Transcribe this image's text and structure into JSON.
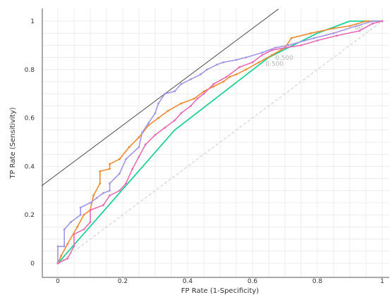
{
  "chart_data": {
    "type": "line",
    "title": "",
    "xlabel": "FP Rate (1-Specificity)",
    "ylabel": "TP Rate (Sensitivity)",
    "xlim": [
      0,
      1
    ],
    "ylim": [
      0,
      1
    ],
    "x_ticks": [
      "0",
      "0.2",
      "0.4",
      "0.6",
      "0.8",
      "1"
    ],
    "y_ticks": [
      "0",
      "0.2",
      "0.4",
      "0.6",
      "0.8",
      "1"
    ],
    "grid": true,
    "legend": "none",
    "diagonal_color": "#cccccc",
    "iso_line": {
      "color": "#4d4d4d",
      "points": [
        [
          -0.05,
          0.32
        ],
        [
          0.68,
          1.05
        ]
      ]
    },
    "threshold_labels": [
      {
        "text": "0.500",
        "x": 0.67,
        "y": 0.84
      },
      {
        "text": "0.500",
        "x": 0.64,
        "y": 0.815
      },
      {
        "text": "00",
        "x": 0.915,
        "y": 0.965
      }
    ],
    "series": [
      {
        "color": "#1fd196",
        "points": [
          [
            0,
            0
          ],
          [
            0.36,
            0.55
          ],
          [
            0.65,
            0.85
          ],
          [
            0.8,
            0.95
          ],
          [
            0.9,
            1.0
          ],
          [
            1.0,
            1.0
          ]
        ]
      },
      {
        "color": "#f08a30",
        "points": [
          [
            0,
            0
          ],
          [
            0.01,
            0.03
          ],
          [
            0.03,
            0.08
          ],
          [
            0.06,
            0.15
          ],
          [
            0.08,
            0.2
          ],
          [
            0.1,
            0.22
          ],
          [
            0.11,
            0.28
          ],
          [
            0.13,
            0.33
          ],
          [
            0.13,
            0.38
          ],
          [
            0.16,
            0.39
          ],
          [
            0.16,
            0.41
          ],
          [
            0.19,
            0.43
          ],
          [
            0.22,
            0.48
          ],
          [
            0.25,
            0.52
          ],
          [
            0.28,
            0.57
          ],
          [
            0.31,
            0.6
          ],
          [
            0.34,
            0.63
          ],
          [
            0.38,
            0.66
          ],
          [
            0.42,
            0.68
          ],
          [
            0.45,
            0.71
          ],
          [
            0.48,
            0.73
          ],
          [
            0.51,
            0.75
          ],
          [
            0.53,
            0.77
          ],
          [
            0.55,
            0.78
          ],
          [
            0.58,
            0.8
          ],
          [
            0.62,
            0.83
          ],
          [
            0.66,
            0.86
          ],
          [
            0.7,
            0.89
          ],
          [
            0.72,
            0.93
          ],
          [
            0.78,
            0.95
          ],
          [
            0.85,
            0.97
          ],
          [
            0.9,
            0.98
          ],
          [
            0.95,
            1.0
          ],
          [
            1.0,
            1.0
          ]
        ]
      },
      {
        "color": "#a394e6",
        "points": [
          [
            0,
            0
          ],
          [
            0,
            0.07
          ],
          [
            0.02,
            0.07
          ],
          [
            0.02,
            0.14
          ],
          [
            0.04,
            0.17
          ],
          [
            0.07,
            0.2
          ],
          [
            0.07,
            0.23
          ],
          [
            0.1,
            0.25
          ],
          [
            0.12,
            0.27
          ],
          [
            0.14,
            0.29
          ],
          [
            0.16,
            0.3
          ],
          [
            0.16,
            0.33
          ],
          [
            0.19,
            0.37
          ],
          [
            0.21,
            0.43
          ],
          [
            0.25,
            0.48
          ],
          [
            0.26,
            0.54
          ],
          [
            0.28,
            0.58
          ],
          [
            0.3,
            0.62
          ],
          [
            0.31,
            0.66
          ],
          [
            0.33,
            0.7
          ],
          [
            0.36,
            0.71
          ],
          [
            0.38,
            0.74
          ],
          [
            0.41,
            0.76
          ],
          [
            0.44,
            0.78
          ],
          [
            0.46,
            0.8
          ],
          [
            0.49,
            0.82
          ],
          [
            0.51,
            0.83
          ],
          [
            0.55,
            0.84
          ],
          [
            0.58,
            0.85
          ],
          [
            0.63,
            0.87
          ],
          [
            0.67,
            0.89
          ],
          [
            0.71,
            0.9
          ],
          [
            0.79,
            0.93
          ],
          [
            0.85,
            0.95
          ],
          [
            0.92,
            0.98
          ],
          [
            0.97,
            1.0
          ],
          [
            1.0,
            1.0
          ]
        ]
      },
      {
        "color": "#e86ab5",
        "points": [
          [
            0,
            0
          ],
          [
            0.03,
            0.02
          ],
          [
            0.05,
            0.07
          ],
          [
            0.05,
            0.12
          ],
          [
            0.08,
            0.14
          ],
          [
            0.1,
            0.17
          ],
          [
            0.1,
            0.22
          ],
          [
            0.14,
            0.24
          ],
          [
            0.16,
            0.28
          ],
          [
            0.19,
            0.3
          ],
          [
            0.21,
            0.33
          ],
          [
            0.23,
            0.39
          ],
          [
            0.25,
            0.44
          ],
          [
            0.27,
            0.49
          ],
          [
            0.3,
            0.53
          ],
          [
            0.33,
            0.56
          ],
          [
            0.36,
            0.59
          ],
          [
            0.38,
            0.62
          ],
          [
            0.41,
            0.65
          ],
          [
            0.43,
            0.68
          ],
          [
            0.45,
            0.7
          ],
          [
            0.48,
            0.74
          ],
          [
            0.52,
            0.77
          ],
          [
            0.56,
            0.81
          ],
          [
            0.6,
            0.83
          ],
          [
            0.63,
            0.86
          ],
          [
            0.66,
            0.88
          ],
          [
            0.7,
            0.89
          ],
          [
            0.75,
            0.9
          ],
          [
            0.8,
            0.92
          ],
          [
            0.86,
            0.94
          ],
          [
            0.93,
            0.96
          ],
          [
            0.97,
            0.99
          ],
          [
            1.0,
            1.0
          ]
        ]
      }
    ]
  }
}
